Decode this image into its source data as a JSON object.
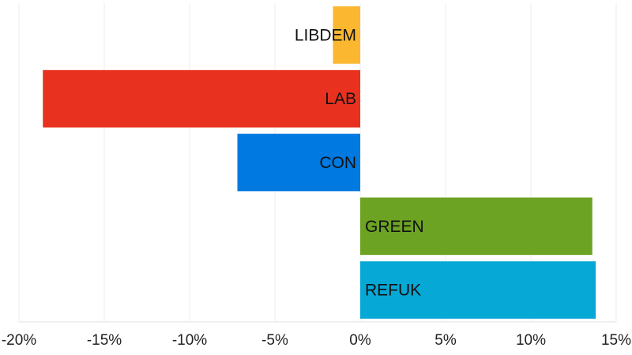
{
  "chart_data": {
    "type": "bar",
    "orientation": "horizontal",
    "categories": [
      "LIBDEM",
      "LAB",
      "CON",
      "GREEN",
      "REFUK"
    ],
    "values": [
      -1.6,
      -18.6,
      -7.2,
      13.6,
      13.8
    ],
    "colors": [
      "#FCB731",
      "#E8321F",
      "#0079E0",
      "#6CA323",
      "#06A8D6"
    ],
    "xlim": [
      -20,
      15
    ],
    "x_ticks": [
      -20,
      -15,
      -10,
      -5,
      0,
      5,
      10,
      15
    ],
    "x_tick_labels": [
      "-20%",
      "-15%",
      "-10%",
      "-5%",
      "0%",
      "5%",
      "10%",
      "15%"
    ],
    "grid": true,
    "title": "",
    "xlabel": "",
    "ylabel": ""
  }
}
